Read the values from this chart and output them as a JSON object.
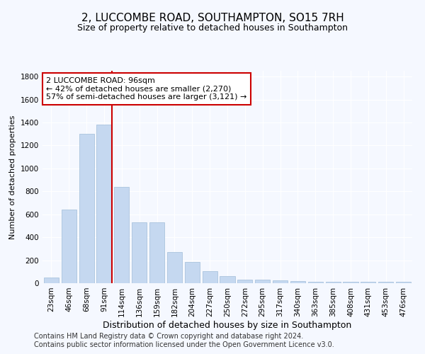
{
  "title": "2, LUCCOMBE ROAD, SOUTHAMPTON, SO15 7RH",
  "subtitle": "Size of property relative to detached houses in Southampton",
  "xlabel": "Distribution of detached houses by size in Southampton",
  "ylabel": "Number of detached properties",
  "categories": [
    "23sqm",
    "46sqm",
    "68sqm",
    "91sqm",
    "114sqm",
    "136sqm",
    "159sqm",
    "182sqm",
    "204sqm",
    "227sqm",
    "250sqm",
    "272sqm",
    "295sqm",
    "317sqm",
    "340sqm",
    "363sqm",
    "385sqm",
    "408sqm",
    "431sqm",
    "453sqm",
    "476sqm"
  ],
  "values": [
    50,
    640,
    1300,
    1380,
    840,
    530,
    530,
    270,
    185,
    105,
    60,
    30,
    30,
    25,
    18,
    12,
    12,
    12,
    12,
    12,
    12
  ],
  "bar_color": "#c5d8f0",
  "bar_edge_color": "#a0bcd8",
  "vline_color": "#cc0000",
  "annotation_line1": "2 LUCCOMBE ROAD: 96sqm",
  "annotation_line2": "← 42% of detached houses are smaller (2,270)",
  "annotation_line3": "57% of semi-detached houses are larger (3,121) →",
  "annotation_box_color": "#cc0000",
  "ylim": [
    0,
    1850
  ],
  "yticks": [
    0,
    200,
    400,
    600,
    800,
    1000,
    1200,
    1400,
    1600,
    1800
  ],
  "footer1": "Contains HM Land Registry data © Crown copyright and database right 2024.",
  "footer2": "Contains public sector information licensed under the Open Government Licence v3.0.",
  "title_fontsize": 11,
  "subtitle_fontsize": 9,
  "xlabel_fontsize": 9,
  "ylabel_fontsize": 8,
  "tick_fontsize": 7.5,
  "annotation_fontsize": 8,
  "footer_fontsize": 7,
  "background_color": "#f5f8ff",
  "plot_bg_color": "#f5f8ff",
  "grid_color": "#ffffff"
}
